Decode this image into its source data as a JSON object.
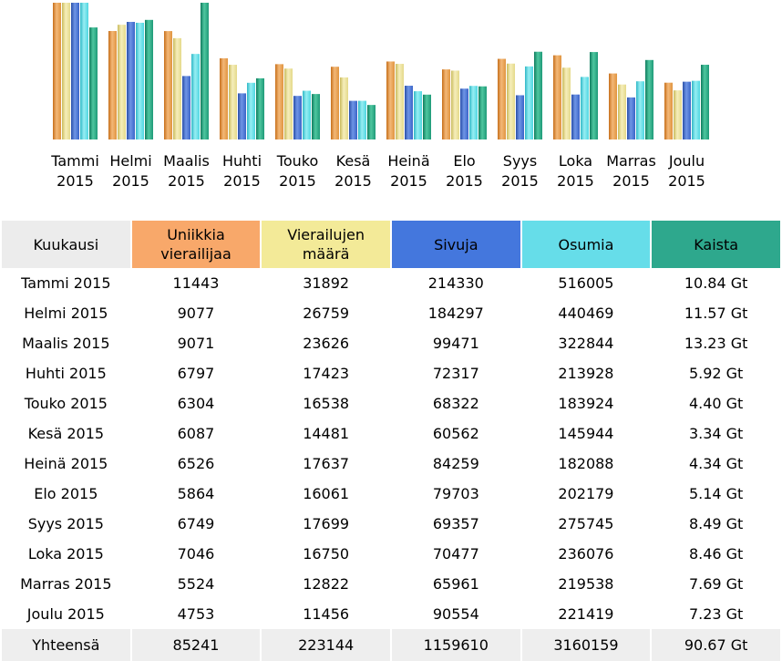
{
  "chart_data": {
    "type": "bar",
    "categories": [
      "Tammi 2015",
      "Helmi 2015",
      "Maalis 2015",
      "Huhti 2015",
      "Touko 2015",
      "Kesä 2015",
      "Heinä 2015",
      "Elo 2015",
      "Syys 2015",
      "Loka 2015",
      "Marras 2015",
      "Joulu 2015"
    ],
    "category_lines": [
      [
        "Tammi",
        "2015"
      ],
      [
        "Helmi",
        "2015"
      ],
      [
        "Maalis",
        "2015"
      ],
      [
        "Huhti",
        "2015"
      ],
      [
        "Touko",
        "2015"
      ],
      [
        "Kesä",
        "2015"
      ],
      [
        "Heinä",
        "2015"
      ],
      [
        "Elo",
        "2015"
      ],
      [
        "Syys",
        "2015"
      ],
      [
        "Loka",
        "2015"
      ],
      [
        "Marras",
        "2015"
      ],
      [
        "Joulu",
        "2015"
      ]
    ],
    "series": [
      {
        "name": "Uniikkia vierailijaa",
        "color": "#e0943f",
        "values": [
          11443,
          9077,
          9071,
          6797,
          6304,
          6087,
          6526,
          5864,
          6749,
          7046,
          5524,
          4753
        ]
      },
      {
        "name": "Vierailujen määrä",
        "color": "#e4d98a",
        "values": [
          31892,
          26759,
          23626,
          17423,
          16538,
          14481,
          17637,
          16061,
          17699,
          16750,
          12822,
          11456
        ]
      },
      {
        "name": "Sivuja",
        "color": "#3a64c8",
        "values": [
          214330,
          184297,
          99471,
          72317,
          68322,
          60562,
          84259,
          79703,
          69357,
          70477,
          65961,
          90554
        ]
      },
      {
        "name": "Osumia",
        "color": "#4fd6e0",
        "values": [
          516005,
          440469,
          322844,
          213928,
          183924,
          145944,
          182088,
          202179,
          275745,
          236076,
          219538,
          221419
        ]
      },
      {
        "name": "Kaista",
        "unit": "Gt",
        "color": "#1e9a78",
        "values": [
          10.84,
          11.57,
          13.23,
          5.92,
          4.4,
          3.34,
          4.34,
          5.14,
          8.49,
          8.46,
          7.69,
          7.23
        ]
      }
    ],
    "legend": "none"
  },
  "table": {
    "headers": [
      "Kuukausi",
      "Uniikkia vierailijaa",
      "Vierailujen määrä",
      "Sivuja",
      "Osumia",
      "Kaista"
    ],
    "header_colors": [
      "#ececec",
      "#f8a86a",
      "#f3ea98",
      "#4477dd",
      "#66dde9",
      "#2ea88d"
    ],
    "rows": [
      [
        "Tammi 2015",
        "11443",
        "31892",
        "214330",
        "516005",
        "10.84 Gt"
      ],
      [
        "Helmi 2015",
        "9077",
        "26759",
        "184297",
        "440469",
        "11.57 Gt"
      ],
      [
        "Maalis 2015",
        "9071",
        "23626",
        "99471",
        "322844",
        "13.23 Gt"
      ],
      [
        "Huhti 2015",
        "6797",
        "17423",
        "72317",
        "213928",
        "5.92 Gt"
      ],
      [
        "Touko 2015",
        "6304",
        "16538",
        "68322",
        "183924",
        "4.40 Gt"
      ],
      [
        "Kesä 2015",
        "6087",
        "14481",
        "60562",
        "145944",
        "3.34 Gt"
      ],
      [
        "Heinä 2015",
        "6526",
        "17637",
        "84259",
        "182088",
        "4.34 Gt"
      ],
      [
        "Elo 2015",
        "5864",
        "16061",
        "79703",
        "202179",
        "5.14 Gt"
      ],
      [
        "Syys 2015",
        "6749",
        "17699",
        "69357",
        "275745",
        "8.49 Gt"
      ],
      [
        "Loka 2015",
        "7046",
        "16750",
        "70477",
        "236076",
        "8.46 Gt"
      ],
      [
        "Marras 2015",
        "5524",
        "12822",
        "65961",
        "219538",
        "7.69 Gt"
      ],
      [
        "Joulu 2015",
        "4753",
        "11456",
        "90554",
        "221419",
        "7.23 Gt"
      ]
    ],
    "totals": [
      "Yhteensä",
      "85241",
      "223144",
      "1159610",
      "3160159",
      "90.67 Gt"
    ]
  }
}
